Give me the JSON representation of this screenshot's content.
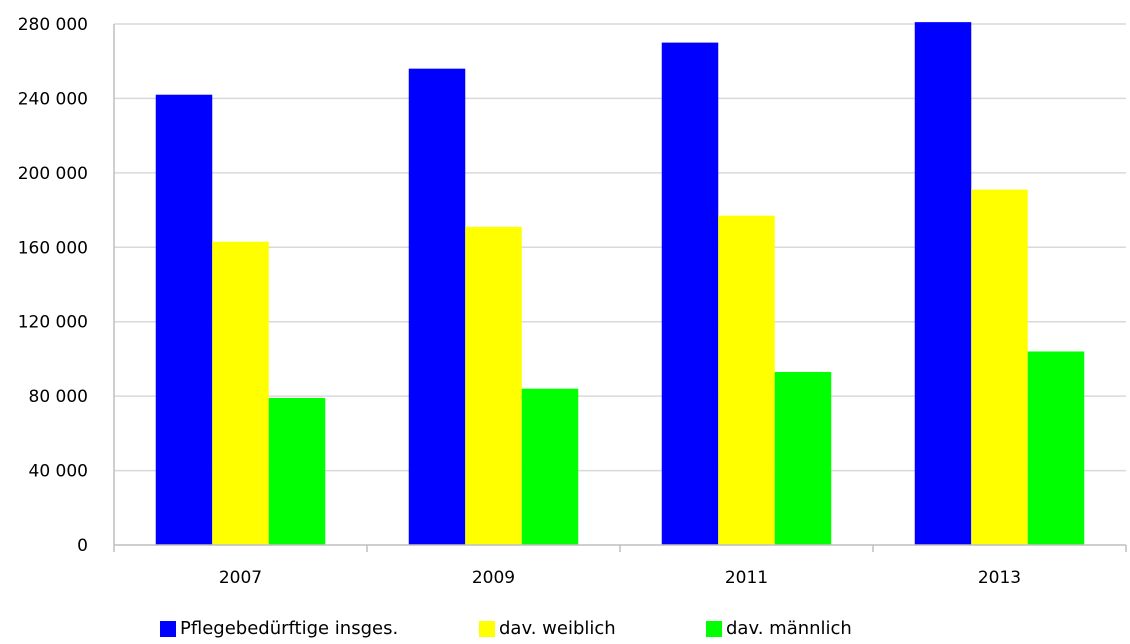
{
  "chart_data": {
    "type": "bar",
    "categories": [
      "2007",
      "2009",
      "2011",
      "2013"
    ],
    "series": [
      {
        "name": "Pflegebedürftige insges.",
        "color": "#0000ff",
        "values": [
          242000,
          256000,
          270000,
          281000
        ]
      },
      {
        "name": "dav. weiblich",
        "color": "#ffff00",
        "values": [
          163000,
          171000,
          177000,
          191000
        ]
      },
      {
        "name": "dav. männlich",
        "color": "#00ff00",
        "values": [
          79000,
          84000,
          93000,
          104000
        ]
      }
    ],
    "y_ticks": [
      "0",
      "40 000",
      "80 000",
      "120 000",
      "160 000",
      "200 000",
      "240 000",
      "280 000"
    ],
    "y_tick_values": [
      0,
      40000,
      80000,
      120000,
      160000,
      200000,
      240000,
      280000
    ],
    "ylim": [
      0,
      280000
    ],
    "grid": true,
    "legend_position": "bottom",
    "gridline_color": "#d9d9d9",
    "axis_color": "#bfbfbf"
  }
}
